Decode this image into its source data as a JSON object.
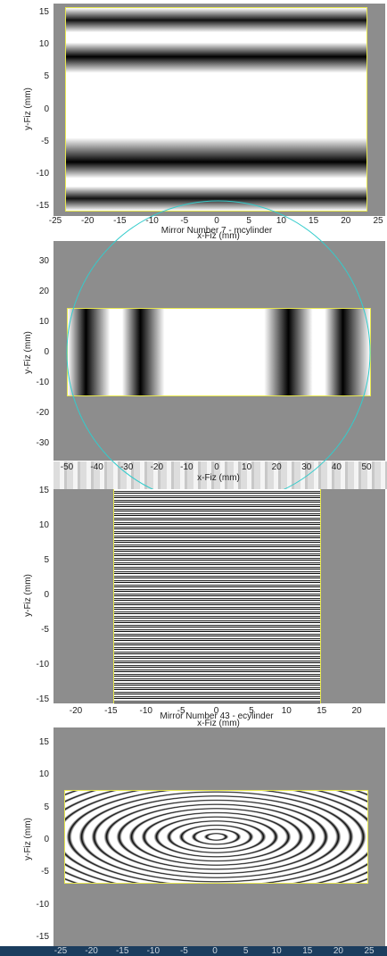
{
  "panels": [
    {
      "x_ticks": [
        -25,
        -20,
        -15,
        -10,
        -5,
        0,
        5,
        10,
        15,
        20,
        25
      ],
      "y_ticks": [
        15,
        10,
        5,
        0,
        -5,
        -10,
        -15
      ],
      "x_label": "x-Fiz (mm)",
      "y_label": "y-Fiz (mm)"
    },
    {
      "title": "Mirror Number 7 - mcylinder",
      "x_ticks": [
        -50,
        -40,
        -30,
        -20,
        -10,
        0,
        10,
        20,
        30,
        40,
        50
      ],
      "y_ticks": [
        30,
        20,
        10,
        0,
        -10,
        -20,
        -30
      ],
      "x_label": "x-Fiz (mm)",
      "y_label": "y-Fiz (mm)"
    },
    {
      "x_ticks": [
        -20,
        -15,
        -10,
        -5,
        0,
        5,
        10,
        15,
        20
      ],
      "y_ticks": [
        15,
        10,
        5,
        0,
        -5,
        -10,
        -15
      ],
      "x_label": "x-Fiz (mm)",
      "y_label": "y-Fiz (mm)"
    },
    {
      "title": "Mirror Number 43 - ecylinder",
      "x_ticks": [
        -25,
        -20,
        -15,
        -10,
        -5,
        0,
        5,
        10,
        15,
        20,
        25
      ],
      "y_ticks": [
        15,
        10,
        5,
        0,
        -5,
        -10,
        -15
      ],
      "y_label": "y-Fiz (mm)"
    }
  ]
}
